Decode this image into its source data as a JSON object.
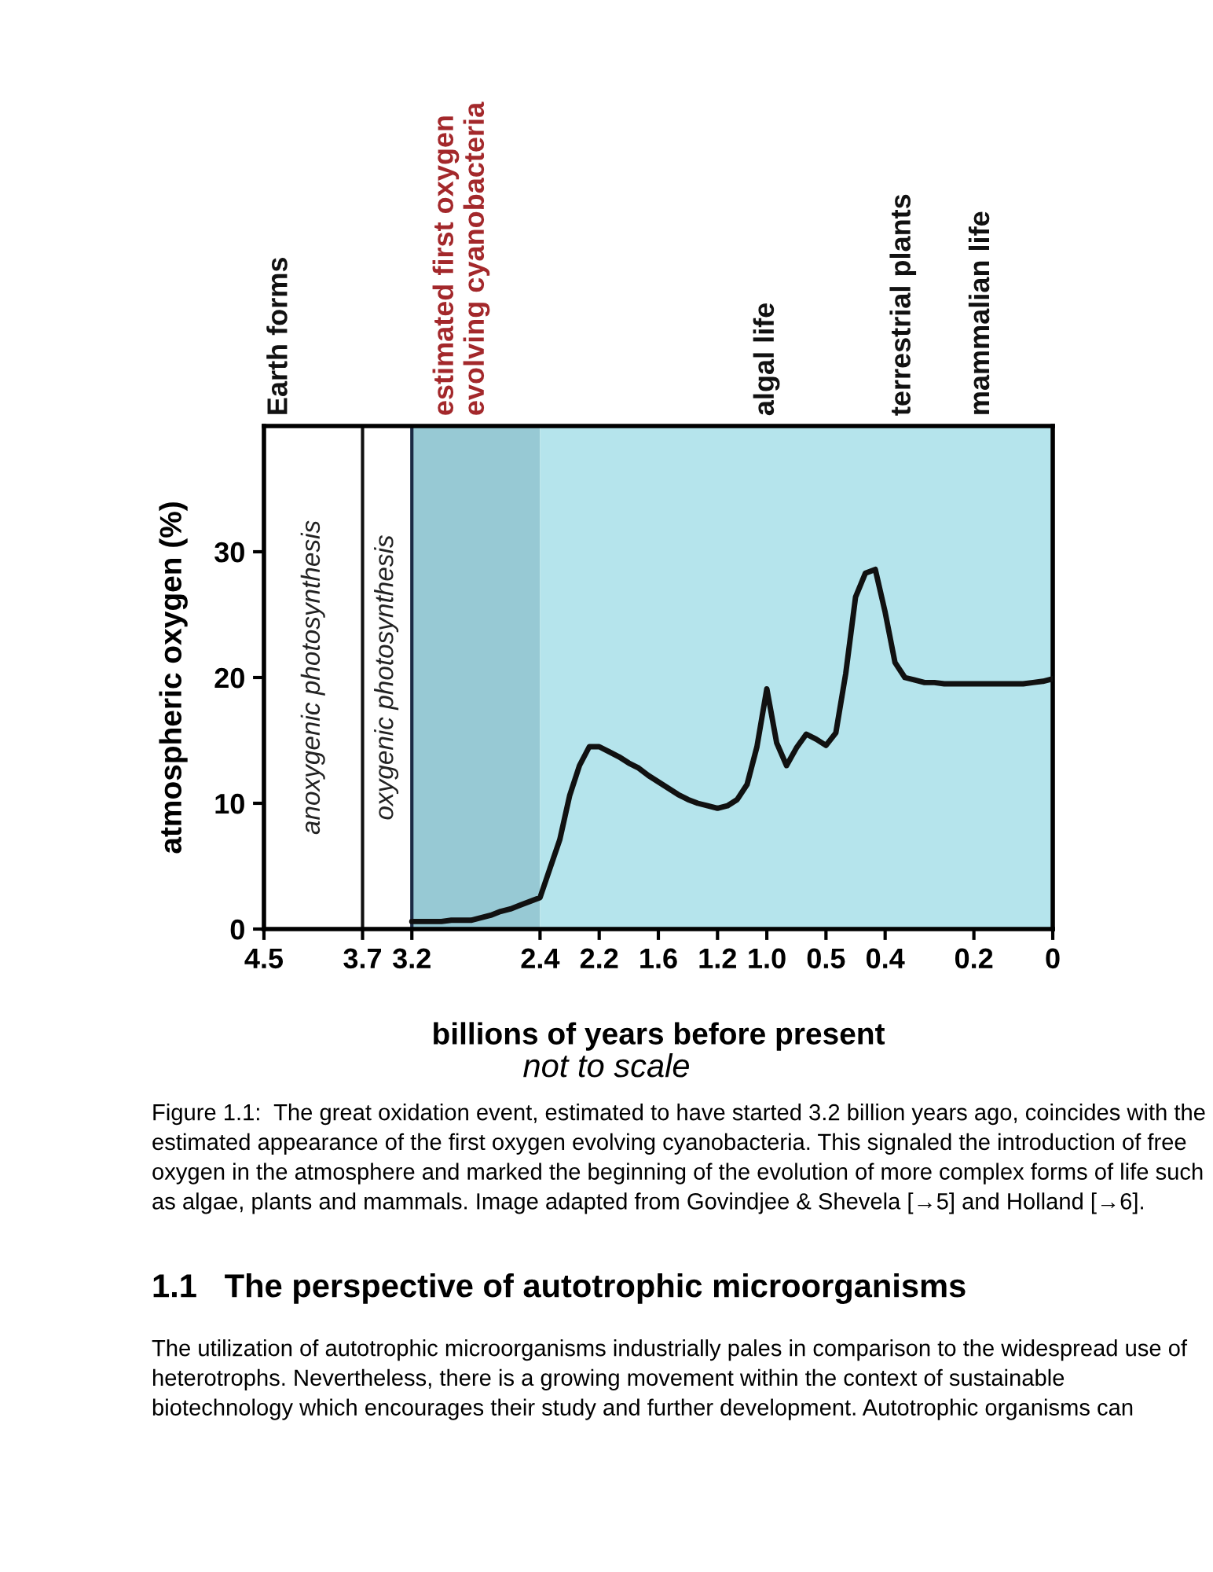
{
  "chart_data": {
    "type": "line",
    "xlabel": "billions of years before present",
    "ylabel": "atmospheric oxygen (%)",
    "categories": [
      "4.5",
      null,
      null,
      null,
      null,
      null,
      null,
      null,
      null,
      null,
      "3.7",
      null,
      null,
      null,
      null,
      "3.2",
      null,
      null,
      null,
      null,
      null,
      null,
      null,
      null,
      null,
      null,
      null,
      null,
      "2.4",
      null,
      null,
      null,
      null,
      null,
      "2.2",
      null,
      null,
      null,
      null,
      null,
      "1.6",
      null,
      null,
      null,
      null,
      null,
      "1.2",
      null,
      null,
      null,
      null,
      "1.0",
      null,
      null,
      null,
      null,
      null,
      "0.5",
      null,
      null,
      null,
      null,
      null,
      "0.4",
      null,
      null,
      null,
      null,
      null,
      null,
      null,
      null,
      "0.2",
      null,
      null,
      null,
      null,
      null,
      null,
      null,
      "0"
    ],
    "ylim": [
      0,
      40
    ],
    "yticks": [
      0,
      10,
      20,
      30
    ],
    "series": [
      {
        "color": "#111111",
        "values": [
          null,
          null,
          null,
          null,
          null,
          null,
          null,
          null,
          null,
          null,
          null,
          null,
          null,
          null,
          null,
          0.6,
          0.6,
          0.6,
          0.6,
          0.7,
          0.7,
          0.7,
          0.9,
          1.1,
          1.4,
          1.6,
          1.9,
          2.2,
          2.5,
          4.8,
          7.1,
          10.6,
          13,
          14.5,
          14.5,
          14.1,
          13.7,
          13.2,
          12.8,
          12.2,
          11.7,
          11.2,
          10.7,
          10.3,
          10.0,
          9.8,
          9.6,
          9.8,
          10.3,
          11.5,
          14.5,
          19.1,
          14.8,
          13,
          14.4,
          15.5,
          15.1,
          14.6,
          15.6,
          20.3,
          26.4,
          28.3,
          28.6,
          25.2,
          21.2,
          20.0,
          19.8,
          19.6,
          19.6,
          19.5,
          19.5,
          19.5,
          19.5,
          19.5,
          19.5,
          19.5,
          19.5,
          19.5,
          19.6,
          19.7,
          19.9
        ]
      }
    ],
    "bands": [
      {
        "axis": "x",
        "from": "3.2",
        "to": "2.4",
        "color": "#97c9d4"
      },
      {
        "axis": "x",
        "from": "2.4",
        "to": "0",
        "color": "#b5e4ec"
      }
    ],
    "ref_lines": [
      {
        "axis": "x",
        "value": "3.7",
        "color": "#111111"
      },
      {
        "axis": "x",
        "value": "3.2",
        "color": "#1a2a44"
      }
    ],
    "annotations": [
      "Earth forms",
      "estimated first oxygen\nevolving cyanobacteria",
      "algal life",
      "terrestrial plants",
      "mammalian life",
      "anoxygenic photosynthesis",
      "oxygenic photosynthesis",
      "not to scale",
      "Figure 1.1:  The great oxidation event, estimated to have started 3.2 billion years ago, coincides with the estimated appearance of the first oxygen evolving cyanobacteria. This signaled the introduction of free oxygen in the atmosphere and marked the beginning of the evolution of more complex forms of life such as algae, plants and mammals. Image adapted from Govindjee & Shevela [→5] and Holland [→6].",
      "1.1   The perspective of autotrophic microorganisms",
      "The utilization of autotrophic microorganisms industrially pales in comparison to the widespread use of heterotrophs. Nevertheless, there is a growing movement within the context of sustainable biotechnology which encourages their study and further development. Autotrophic organisms can"
    ]
  }
}
